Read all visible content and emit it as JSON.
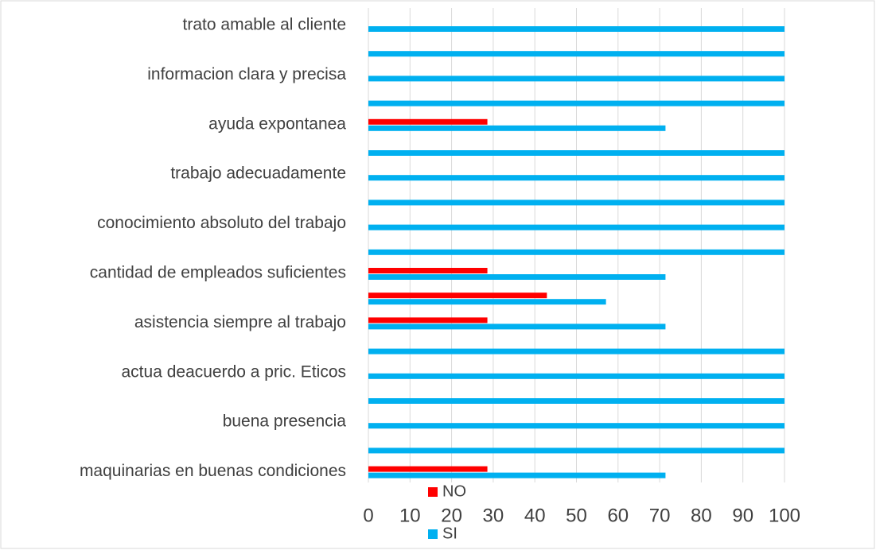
{
  "chart_data": {
    "type": "bar",
    "orientation": "horizontal",
    "categories": [
      "trato amable al cliente",
      null,
      "informacion clara y precisa",
      null,
      "ayuda expontanea",
      null,
      "trabajo adecuadamente",
      null,
      "conocimiento absoluto del trabajo",
      null,
      "cantidad de empleados suficientes",
      null,
      "asistencia siempre al trabajo",
      null,
      "actua deacuerdo a pric. Eticos",
      null,
      "buena presencia",
      null,
      "maquinarias en buenas condiciones"
    ],
    "series": [
      {
        "name": "NO",
        "color": "#ff0000",
        "values": [
          0,
          0,
          0,
          0,
          28.6,
          0,
          0,
          0,
          0,
          0,
          28.6,
          42.9,
          28.6,
          0,
          0,
          0,
          0,
          0,
          28.6
        ]
      },
      {
        "name": "SI",
        "color": "#00b0f0",
        "values": [
          100,
          100,
          100,
          100,
          71.4,
          100,
          100,
          100,
          100,
          100,
          71.4,
          57.1,
          71.4,
          100,
          100,
          100,
          100,
          100,
          71.4
        ]
      }
    ],
    "xlim": [
      0,
      100
    ],
    "xticks": [
      0,
      10,
      20,
      30,
      40,
      50,
      60,
      70,
      80,
      90,
      100
    ],
    "grid": true
  }
}
